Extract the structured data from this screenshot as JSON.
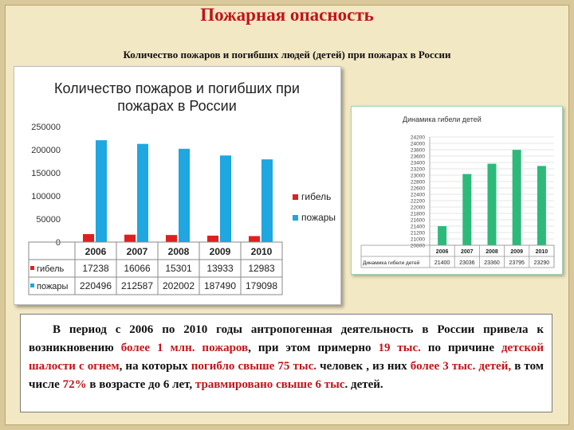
{
  "slide": {
    "title": "Пожарная опасность",
    "subtitle": "Количество пожаров и погибших людей (детей) при пожарах в России"
  },
  "colors": {
    "title": "#c0151a",
    "deaths": "#e02020",
    "fires": "#1ea7e0",
    "children": "#2db97a",
    "highlight": "#c0151a"
  },
  "chart_data": [
    {
      "type": "bar",
      "title": "Количество пожаров и погибших при пожарах в России",
      "categories": [
        "2006",
        "2007",
        "2008",
        "2009",
        "2010"
      ],
      "series": [
        {
          "name": "гибель",
          "values": [
            17238,
            16066,
            15301,
            13933,
            12983
          ],
          "labels": [
            "17238",
            "16066",
            "15301",
            "13933",
            "12983"
          ]
        },
        {
          "name": "пожары",
          "values": [
            220496,
            212587,
            202002,
            187490,
            179098
          ],
          "labels": [
            "220496",
            "212587",
            "202002",
            "187490",
            "179098"
          ]
        }
      ],
      "ylim": [
        0,
        250000
      ],
      "yticks": [
        0,
        50000,
        100000,
        150000,
        200000,
        250000
      ],
      "ytick_labels": [
        "0",
        "50000",
        "100000",
        "150000",
        "200000",
        "250000"
      ],
      "legend": "right",
      "grid": false,
      "data_table": true
    },
    {
      "type": "bar",
      "title": "Динамика гибели детей",
      "categories": [
        "2006",
        "2007",
        "2008",
        "2009",
        "2010"
      ],
      "series": [
        {
          "name": "Динамика гибели детей",
          "values": [
            21400,
            23036,
            23360,
            23795,
            23290
          ],
          "labels": [
            "21400",
            "23036",
            "23360",
            "23795",
            "23290"
          ]
        }
      ],
      "ylim": [
        20800,
        24200
      ],
      "yticks": [
        20800,
        21000,
        21200,
        21400,
        21600,
        21800,
        22000,
        22200,
        22400,
        22600,
        22800,
        23000,
        23200,
        23400,
        23600,
        23800,
        24000,
        24200
      ],
      "ytick_labels": [
        "20800",
        "21000",
        "21200",
        "21400",
        "21600",
        "21800",
        "22000",
        "22200",
        "22400",
        "22600",
        "22800",
        "23000",
        "23200",
        "23400",
        "23600",
        "23800",
        "24000",
        "24200"
      ],
      "grid": true,
      "data_table": true
    }
  ],
  "text": {
    "p1": "В период с 2006  по 2010 годы антропогенная деятельность в России привела к возникновению ",
    "h1": "более 1 млн. пожаров",
    "p2": ", при этом  примерно ",
    "h2": "19 тыс.",
    "p3": " по причине ",
    "h3": "детской шалости с огнем",
    "p4": ", на которых ",
    "h4": "погибло свыше 75 тыс.",
    "p5": " человек , из них ",
    "h5": "более 3 тыс. детей,",
    "p6": " в том числе ",
    "h6": "72%",
    "p7": " в возрасте до 6 лет, ",
    "h7": "травмировано свыше 6 тыс",
    "p8": ". детей."
  }
}
